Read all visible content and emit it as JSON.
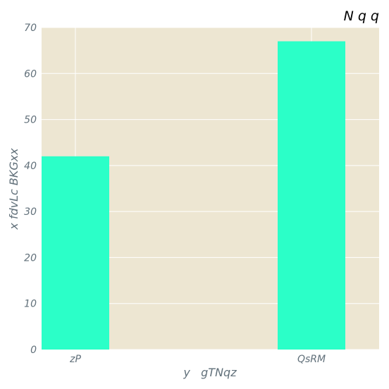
{
  "chart_data": {
    "type": "bar",
    "title": "N q q",
    "xlabel": "y   gTNqz",
    "ylabel": "x fdvLc BKGxx",
    "categories": [
      "zP",
      "QsRM"
    ],
    "values": [
      42,
      67
    ],
    "ylim": [
      0,
      70
    ],
    "yticks": [
      0,
      10,
      20,
      30,
      40,
      50,
      60,
      70
    ],
    "grid": true,
    "colors": {
      "bar": "#2bffc8",
      "plot_background": "#ede6d2",
      "grid": "#ffffff",
      "text": "#61707a"
    }
  }
}
